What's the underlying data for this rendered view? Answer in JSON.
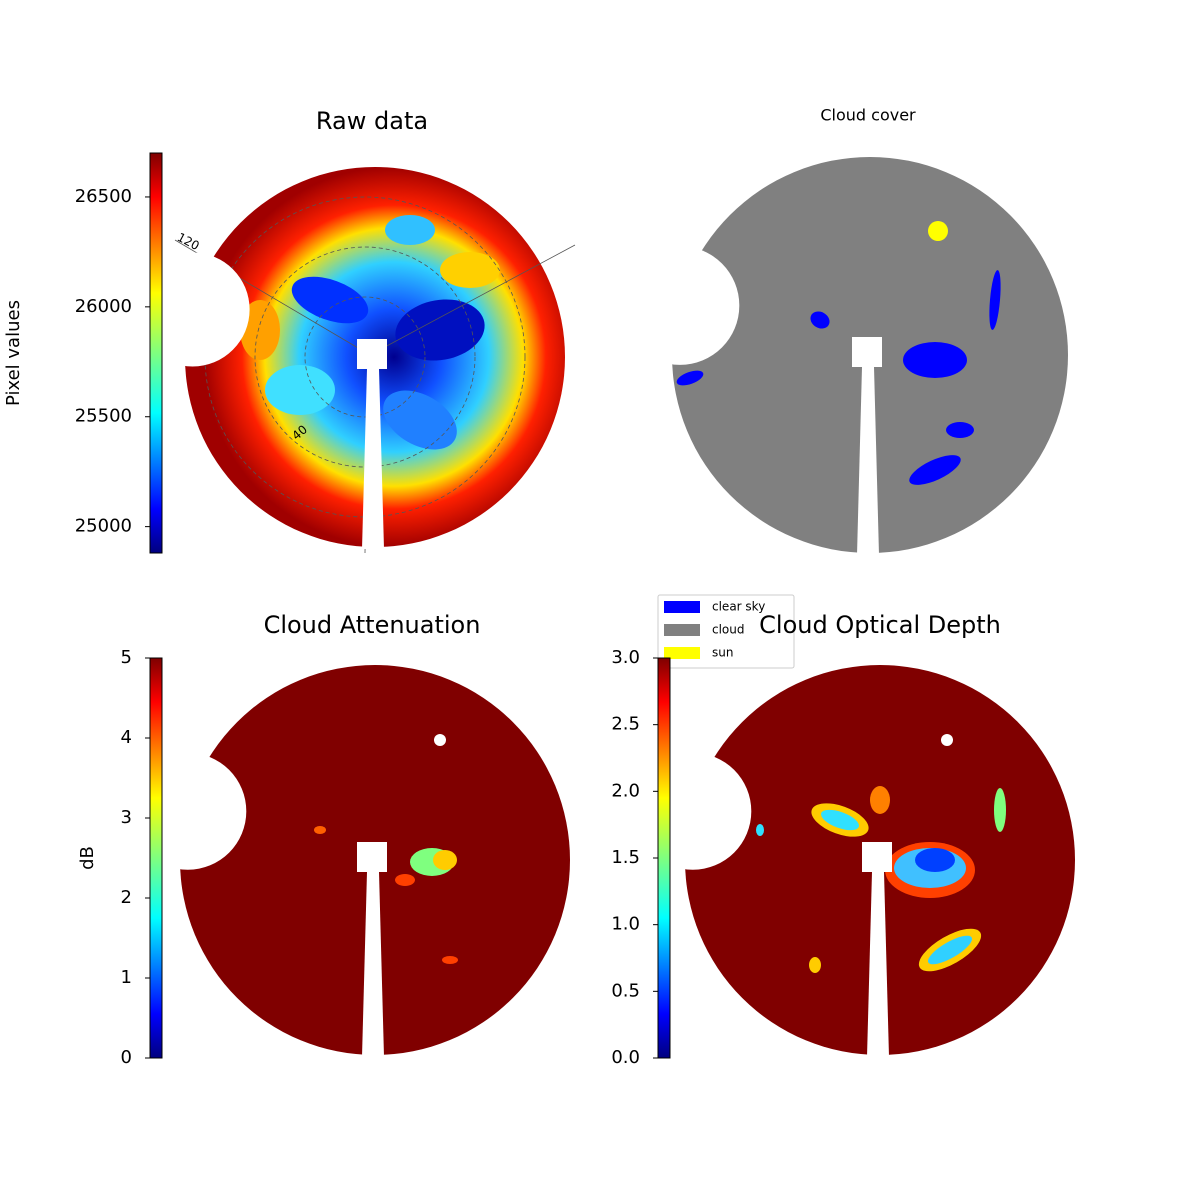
{
  "chart_data": [
    {
      "type": "image",
      "title": "Raw data",
      "colormap": "jet",
      "colorbar": {
        "label": "Pixel values",
        "lim": [
          24880,
          26700
        ],
        "ticks": [
          25000,
          25500,
          26000,
          26500
        ]
      },
      "annotations": [
        "120",
        "40"
      ]
    },
    {
      "type": "image",
      "title": "Cloud cover",
      "legend": [
        {
          "name": "clear sky",
          "color": "#0000ff"
        },
        {
          "name": "cloud",
          "color": "#808080"
        },
        {
          "name": "sun",
          "color": "#ffff00"
        }
      ]
    },
    {
      "type": "image",
      "title": "Cloud Attenuation",
      "colormap": "jet",
      "colorbar": {
        "label": "dB",
        "lim": [
          0,
          5
        ],
        "ticks": [
          0,
          1,
          2,
          3,
          4,
          5
        ]
      }
    },
    {
      "type": "image",
      "title": "Cloud Optical Depth",
      "colormap": "jet",
      "colorbar": {
        "lim": [
          0,
          3
        ],
        "ticks": [
          {
            "value": 0,
            "label": "0.0"
          },
          0.5,
          {
            "value": 1,
            "label": "1.0"
          },
          1.5,
          {
            "value": 2,
            "label": "2.0"
          },
          2.5,
          {
            "value": 3,
            "label": "3.0"
          }
        ]
      }
    }
  ]
}
